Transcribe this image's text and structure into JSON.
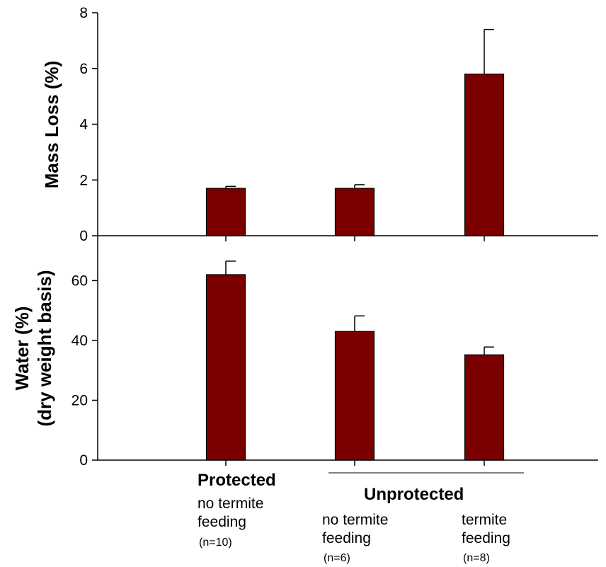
{
  "chart_data": [
    {
      "type": "bar",
      "ylabel": "Mass Loss (%)",
      "ylim": [
        0,
        8
      ],
      "yticks": [
        "0",
        "2",
        "4",
        "6",
        "8"
      ],
      "xlabel": "",
      "title": "",
      "categories": [
        "Protected no termite feeding (n=10)",
        "Unprotected no termite feeding (n=6)",
        "Unprotected termite feeding (n=8)"
      ],
      "values": [
        1.7,
        1.7,
        5.8
      ],
      "errors": [
        0.07,
        0.13,
        1.6
      ],
      "bar_color": "#7A0000",
      "grid": false
    },
    {
      "type": "bar",
      "ylabel": [
        "Water (%)",
        "(dry weight basis)"
      ],
      "ylim": [
        0,
        75
      ],
      "yticks": [
        "0",
        "20",
        "40",
        "60"
      ],
      "xlabel": "",
      "title": "",
      "categories": [
        "Protected no termite feeding (n=10)",
        "Unprotected no termite feeding (n=6)",
        "Unprotected termite feeding (n=8)"
      ],
      "values": [
        62,
        43,
        35.2
      ],
      "errors": [
        4.5,
        5.2,
        2.6
      ],
      "bar_color": "#7A0000",
      "grid": false
    }
  ],
  "x_axis_groups": {
    "protected": {
      "header": "Protected",
      "lines": [
        "no termite",
        "feeding"
      ],
      "n": "(n=10)"
    },
    "unprotected": {
      "header": "Unprotected",
      "subgroups": [
        {
          "lines": [
            "no termite",
            "feeding"
          ],
          "n": "(n=6)"
        },
        {
          "lines": [
            "termite",
            "feeding"
          ],
          "n": "(n=8)"
        }
      ]
    }
  }
}
